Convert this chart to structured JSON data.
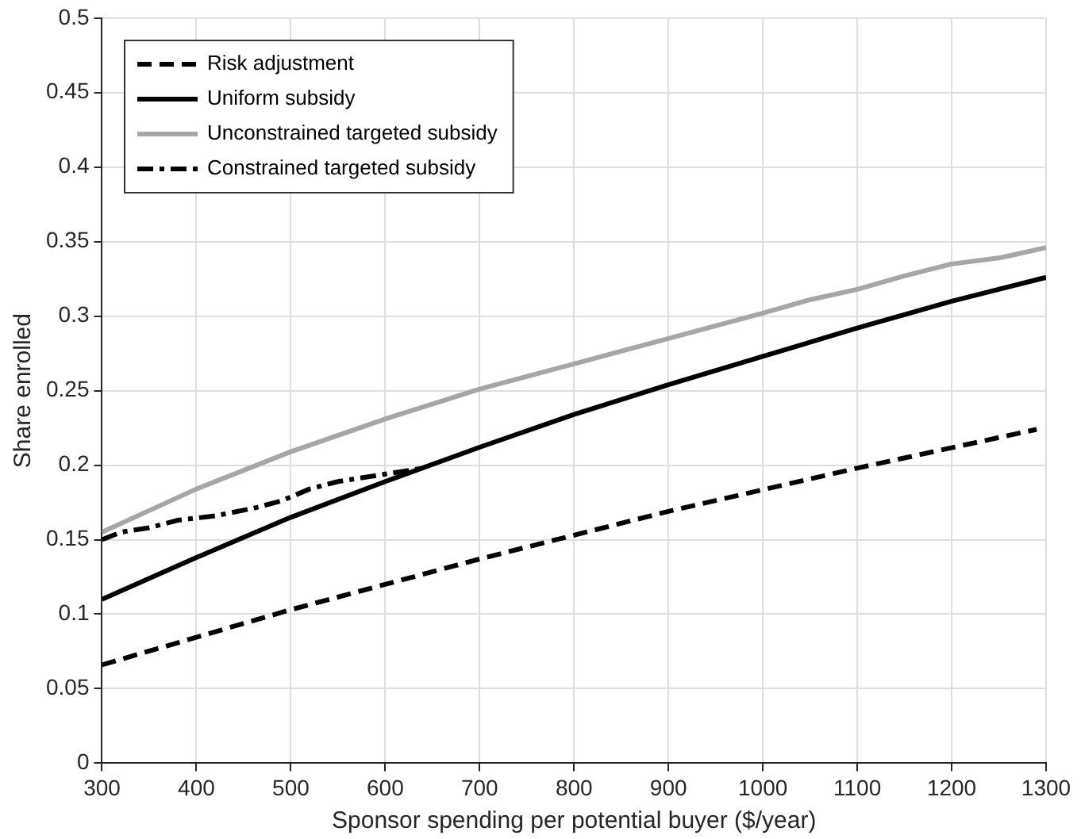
{
  "chart_data": {
    "type": "line",
    "xlabel": "Sponsor spending per potential buyer ($/year)",
    "ylabel": "Share enrolled",
    "xlim": [
      300,
      1300
    ],
    "xticks": [
      300,
      400,
      500,
      600,
      700,
      800,
      900,
      1000,
      1100,
      1200,
      1300
    ],
    "ylim": [
      0,
      0.5
    ],
    "yticks": [
      0,
      0.05,
      0.1,
      0.15,
      0.2,
      0.25,
      0.3,
      0.35,
      0.4,
      0.45,
      0.5
    ],
    "grid": true,
    "legend": "top left",
    "marker": "none",
    "series": [
      {
        "name": "Risk adjustment",
        "color": "#000000",
        "line_style": "dashed",
        "x": [
          300,
          500,
          700,
          900,
          1100,
          1290
        ],
        "values": [
          0.066,
          0.103,
          0.137,
          0.169,
          0.198,
          0.224
        ]
      },
      {
        "name": "Uniform subsidy",
        "color": "#000000",
        "line_style": "solid",
        "x": [
          300,
          400,
          500,
          600,
          700,
          800,
          900,
          1000,
          1100,
          1200,
          1300
        ],
        "values": [
          0.11,
          0.138,
          0.165,
          0.189,
          0.212,
          0.234,
          0.254,
          0.273,
          0.292,
          0.31,
          0.326
        ]
      },
      {
        "name": "Unconstrained targeted subsidy",
        "color": "#a6a6a6",
        "line_style": "solid",
        "x": [
          300,
          400,
          500,
          600,
          700,
          800,
          900,
          1000,
          1050,
          1100,
          1150,
          1200,
          1250,
          1300
        ],
        "values": [
          0.155,
          0.184,
          0.209,
          0.231,
          0.251,
          0.268,
          0.285,
          0.302,
          0.311,
          0.318,
          0.327,
          0.335,
          0.339,
          0.346
        ]
      },
      {
        "name": "Constrained targeted subsidy",
        "color": "#000000",
        "line_style": "dashdot",
        "x": [
          300,
          320,
          350,
          380,
          420,
          460,
          490,
          520,
          550,
          600,
          640
        ],
        "values": [
          0.15,
          0.155,
          0.158,
          0.163,
          0.166,
          0.171,
          0.176,
          0.184,
          0.189,
          0.194,
          0.198
        ]
      }
    ]
  }
}
